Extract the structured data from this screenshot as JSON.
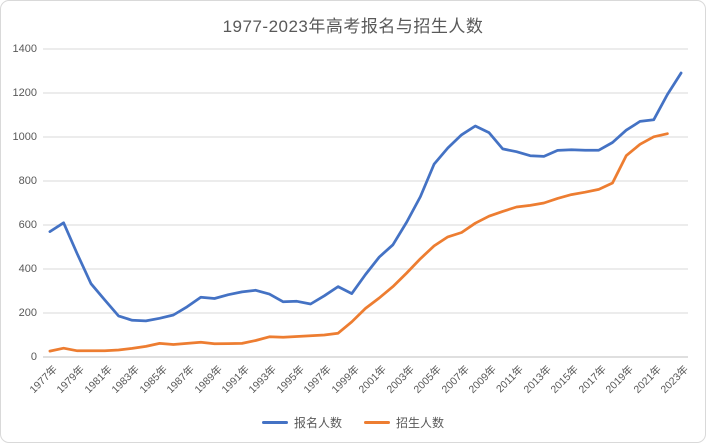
{
  "chart_data": {
    "type": "line",
    "title": "1977-2023年高考报名与招生人数",
    "xlabel": "",
    "ylabel": "",
    "ylim": [
      0,
      1400
    ],
    "y_ticks": [
      0,
      200,
      400,
      600,
      800,
      1000,
      1200,
      1400
    ],
    "x_tick_labels": [
      "1977年",
      "1979年",
      "1981年",
      "1983年",
      "1985年",
      "1987年",
      "1989年",
      "1991年",
      "1993年",
      "1995年",
      "1997年",
      "1999年",
      "2001年",
      "2003年",
      "2005年",
      "2007年",
      "2009年",
      "2011年",
      "2013年",
      "2015年",
      "2017年",
      "2019年",
      "2021年",
      "2023年"
    ],
    "x_range_years": [
      1977,
      2023
    ],
    "grid": true,
    "legend_position": "bottom",
    "series": [
      {
        "name": "报名人数",
        "color": "#4472C4",
        "years": [
          1977,
          1978,
          1979,
          1980,
          1981,
          1982,
          1983,
          1984,
          1985,
          1986,
          1987,
          1988,
          1989,
          1990,
          1991,
          1992,
          1993,
          1994,
          1995,
          1996,
          1997,
          1998,
          1999,
          2000,
          2001,
          2002,
          2003,
          2004,
          2005,
          2006,
          2007,
          2008,
          2009,
          2010,
          2011,
          2012,
          2013,
          2014,
          2015,
          2016,
          2017,
          2018,
          2019,
          2020,
          2021,
          2022,
          2023
        ],
        "values": [
          570,
          610,
          468,
          333,
          259,
          187,
          167,
          164,
          176,
          191,
          228,
          272,
          266,
          283,
          296,
          303,
          286,
          251,
          253,
          241,
          278,
          320,
          288,
          375,
          454,
          510,
          613,
          729,
          877,
          950,
          1010,
          1050,
          1020,
          946,
          933,
          915,
          912,
          939,
          942,
          940,
          940,
          975,
          1031,
          1071,
          1078,
          1193,
          1291
        ]
      },
      {
        "name": "招生人数",
        "color": "#ED7D31",
        "years": [
          1977,
          1978,
          1979,
          1980,
          1981,
          1982,
          1983,
          1984,
          1985,
          1986,
          1987,
          1988,
          1989,
          1990,
          1991,
          1992,
          1993,
          1994,
          1995,
          1996,
          1997,
          1998,
          1999,
          2000,
          2001,
          2002,
          2003,
          2004,
          2005,
          2006,
          2007,
          2008,
          2009,
          2010,
          2011,
          2012,
          2013,
          2014,
          2015,
          2016,
          2017,
          2018,
          2019,
          2020,
          2021,
          2022
        ],
        "values": [
          27,
          40,
          28,
          28,
          28,
          32,
          39,
          48,
          62,
          57,
          62,
          67,
          60,
          61,
          62,
          75,
          92,
          90,
          93,
          97,
          100,
          108,
          160,
          221,
          268,
          320,
          382,
          447,
          505,
          546,
          566,
          608,
          640,
          662,
          682,
          689,
          700,
          721,
          738,
          749,
          762,
          791,
          915,
          967,
          1001,
          1015
        ]
      }
    ],
    "gridline_color": "#D9D9D9",
    "axis_line_color": "#BFBFBF",
    "text_color": "#595959"
  }
}
